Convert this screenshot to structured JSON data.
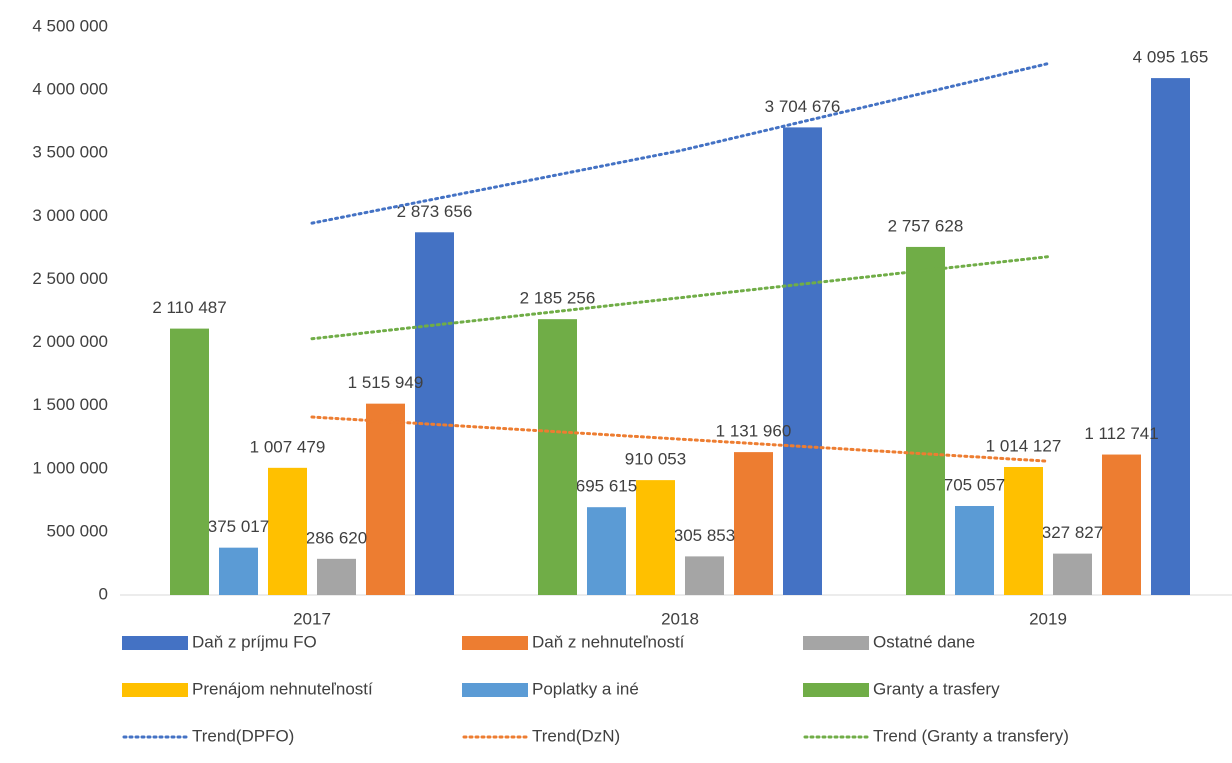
{
  "chart_data": {
    "type": "bar",
    "categories": [
      "2017",
      "2018",
      "2019"
    ],
    "series": [
      {
        "name": "Daň z príjmu FO",
        "color": "#4472c4",
        "values": [
          2873656,
          3704676,
          4095165
        ],
        "value_labels": [
          "2 873 656",
          "3 704 676",
          "4 095 165"
        ]
      },
      {
        "name": "Daň z nehnuteľností",
        "color": "#ed7d31",
        "values": [
          1515949,
          1131960,
          1112741
        ],
        "value_labels": [
          "1 515 949",
          "1 131 960",
          "1 112 741"
        ]
      },
      {
        "name": "Ostatné dane",
        "color": "#a5a5a5",
        "values": [
          286620,
          305853,
          327827
        ],
        "value_labels": [
          "286 620",
          "305 853",
          "327 827"
        ]
      },
      {
        "name": "Prenájom nehnuteľností",
        "color": "#ffc000",
        "values": [
          1007479,
          910053,
          1014127
        ],
        "value_labels": [
          "1 007 479",
          "910 053",
          "1 014 127"
        ]
      },
      {
        "name": "Poplatky a iné",
        "color": "#5b9bd5",
        "values": [
          375017,
          695615,
          705057
        ],
        "value_labels": [
          "375 017",
          "695 615",
          "705 057"
        ]
      },
      {
        "name": "Granty a trasfery",
        "color": "#70ad47",
        "values": [
          2110487,
          2185256,
          2757628
        ],
        "value_labels": [
          "2 110 487",
          "2 185 256",
          "2 757 628"
        ]
      }
    ],
    "trends": [
      {
        "name": "Trend(DPFO)",
        "color": "#4472c4",
        "values": [
          2946000,
          3520000,
          4210000
        ]
      },
      {
        "name": "Trend(DzN)",
        "color": "#ed7d31",
        "values": [
          1410000,
          1235000,
          1060000
        ]
      },
      {
        "name": "Trend (Granty a transfery)",
        "color": "#70ad47",
        "values": [
          2030000,
          2355000,
          2680000
        ]
      }
    ],
    "ylim": [
      0,
      4500000
    ],
    "yticks": [
      {
        "value": 0,
        "label": "0"
      },
      {
        "value": 500000,
        "label": "500 000"
      },
      {
        "value": 1000000,
        "label": "1 000 000"
      },
      {
        "value": 1500000,
        "label": "1 500 000"
      },
      {
        "value": 2000000,
        "label": "2 000 000"
      },
      {
        "value": 2500000,
        "label": "2 500 000"
      },
      {
        "value": 3000000,
        "label": "3 000 000"
      },
      {
        "value": 3500000,
        "label": "3 500 000"
      },
      {
        "value": 4000000,
        "label": "4 000 000"
      },
      {
        "value": 4500000,
        "label": "4 500 000"
      }
    ],
    "grid": false
  }
}
